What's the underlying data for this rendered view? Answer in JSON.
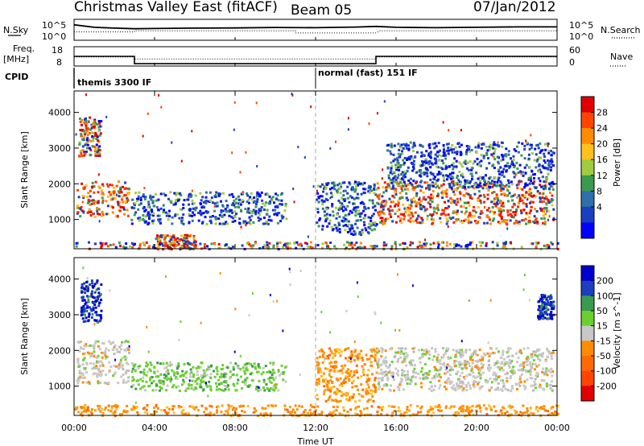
{
  "chart_data": {
    "type": "heatmap",
    "title": {
      "left": "Christmas Valley East (fitACF)",
      "center": "Beam 05",
      "right": "07/Jan/2012"
    },
    "xlabel": "Time UT",
    "xlim": [
      0,
      24
    ],
    "x_ticks": [
      "00:00",
      "04:00",
      "08:00",
      "12:00",
      "16:00",
      "20:00",
      "00:00"
    ],
    "x_tick_values": [
      0,
      4,
      8,
      12,
      16,
      20,
      24
    ],
    "marker_time": 12,
    "top_panels": [
      {
        "name": "noise",
        "left_label": "N.Sky",
        "left_ticks": [
          "10^5",
          "10^0"
        ],
        "right_ticks": [
          "10^5",
          "10^0"
        ],
        "right_label": "N.Search",
        "solid_series": {
          "x": [
            0,
            1,
            2,
            3,
            4,
            6,
            8,
            10,
            12,
            14,
            15,
            16,
            18,
            20,
            22,
            24
          ],
          "y": [
            0.74,
            0.62,
            0.58,
            0.55,
            0.56,
            0.58,
            0.59,
            0.61,
            0.6,
            0.63,
            0.66,
            0.62,
            0.6,
            0.62,
            0.64,
            0.64
          ]
        },
        "dotted_series": {
          "x": [
            0,
            3,
            3,
            11,
            11,
            15,
            15.2,
            24
          ],
          "y": [
            0.4,
            0.4,
            0.45,
            0.45,
            0.35,
            0.35,
            0.45,
            0.45
          ]
        }
      },
      {
        "name": "frequency",
        "left_label": "Freq.",
        "left_unit": "[MHz]",
        "left_ticks": [
          "18",
          "8"
        ],
        "right_ticks": [
          "60",
          "0"
        ],
        "right_label": "Nave",
        "freq_series": {
          "x": [
            0,
            3,
            3,
            15,
            15,
            24
          ],
          "y": [
            13,
            13,
            9.2,
            9.2,
            13,
            13
          ]
        },
        "nave_series": {
          "x": [
            0,
            3,
            3,
            15,
            15,
            24
          ],
          "y": [
            28,
            28,
            22,
            22,
            28,
            28
          ]
        }
      }
    ],
    "cpid": {
      "label": "CPID",
      "segments": [
        {
          "start": 0,
          "text": "themis 3300 IF"
        },
        {
          "start": 12,
          "text": "normal (fast) 151 IF"
        }
      ]
    },
    "panels": [
      {
        "name": "power",
        "ylabel": "Slant Range [km]",
        "ylim": [
          180,
          4600
        ],
        "y_ticks": [
          1000,
          2000,
          3000,
          4000
        ],
        "colorbar_label": "Power [dB]",
        "colorbar_ticks": [
          "28",
          "24",
          "20",
          "16",
          "12",
          "8",
          "4"
        ],
        "colorbar_colors": [
          "#e00000",
          "#ff4500",
          "#ff8c00",
          "#ffc020",
          "#a0cc40",
          "#3a9a50",
          "#2f6faa",
          "#1c3fbf",
          "#0000ff"
        ],
        "features": [
          {
            "t0": 0.1,
            "t1": 2.7,
            "r0": 1100,
            "r1": 2100,
            "value": "red"
          },
          {
            "t0": 0.2,
            "t1": 1.3,
            "r0": 2800,
            "r1": 3900,
            "value": "mixed"
          },
          {
            "t0": 2.8,
            "t1": 10.5,
            "r0": 900,
            "r1": 1800,
            "value": "blue"
          },
          {
            "t0": 4.0,
            "t1": 6.0,
            "r0": 200,
            "r1": 600,
            "value": "red"
          },
          {
            "t0": 12.0,
            "t1": 15.0,
            "r0": 600,
            "r1": 2100,
            "value": "blue"
          },
          {
            "t0": 15.0,
            "t1": 23.8,
            "r0": 900,
            "r1": 2100,
            "value": "red"
          },
          {
            "t0": 15.5,
            "t1": 23.8,
            "r0": 1900,
            "r1": 3200,
            "value": "blue"
          },
          {
            "t0": 0.0,
            "t1": 24.0,
            "r0": 200,
            "r1": 400,
            "value": "mixed"
          }
        ]
      },
      {
        "name": "velocity",
        "ylabel": "Slant Range [km]",
        "ylim": [
          180,
          4600
        ],
        "y_ticks": [
          1000,
          2000,
          3000,
          4000
        ],
        "colorbar_label": "Velocity [m s^-1]",
        "colorbar_ticks": [
          "200",
          "100",
          "50",
          "15",
          "-15",
          "-50",
          "-100",
          "-200"
        ],
        "colorbar_colors": [
          "#0000cc",
          "#1c3fbf",
          "#3a9a50",
          "#6ccf30",
          "#c8c8c8",
          "#ff8c00",
          "#ff6a00",
          "#ff4500",
          "#e00000"
        ],
        "features": [
          {
            "t0": 0.1,
            "t1": 2.7,
            "r0": 1100,
            "r1": 2300,
            "value": "grey"
          },
          {
            "t0": 0.3,
            "t1": 1.3,
            "r0": 2800,
            "r1": 4000,
            "value": "blue"
          },
          {
            "t0": 2.8,
            "t1": 10.5,
            "r0": 900,
            "r1": 1700,
            "value": "green"
          },
          {
            "t0": 12.0,
            "t1": 15.0,
            "r0": 600,
            "r1": 2100,
            "value": "orange"
          },
          {
            "t0": 15.0,
            "t1": 23.8,
            "r0": 900,
            "r1": 2100,
            "value": "grey"
          },
          {
            "t0": 0.0,
            "t1": 24.0,
            "r0": 200,
            "r1": 500,
            "value": "orange"
          },
          {
            "t0": 23.0,
            "t1": 23.8,
            "r0": 2900,
            "r1": 3600,
            "value": "blue"
          }
        ]
      }
    ]
  }
}
